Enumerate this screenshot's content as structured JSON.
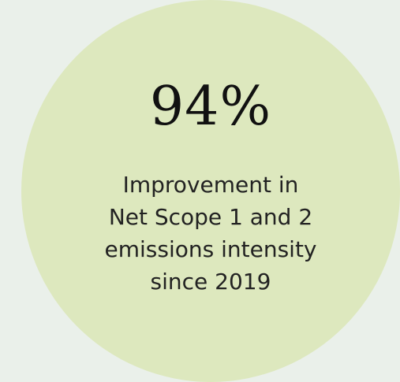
{
  "stat": {
    "value": "94%",
    "caption_lines": [
      "Improvement in",
      "Net Scope 1 and 2",
      "emissions intensity",
      "since 2019"
    ]
  },
  "colors": {
    "page_background": "#eaf0ea",
    "circle_fill": "#dde8be",
    "text": "#111111"
  }
}
